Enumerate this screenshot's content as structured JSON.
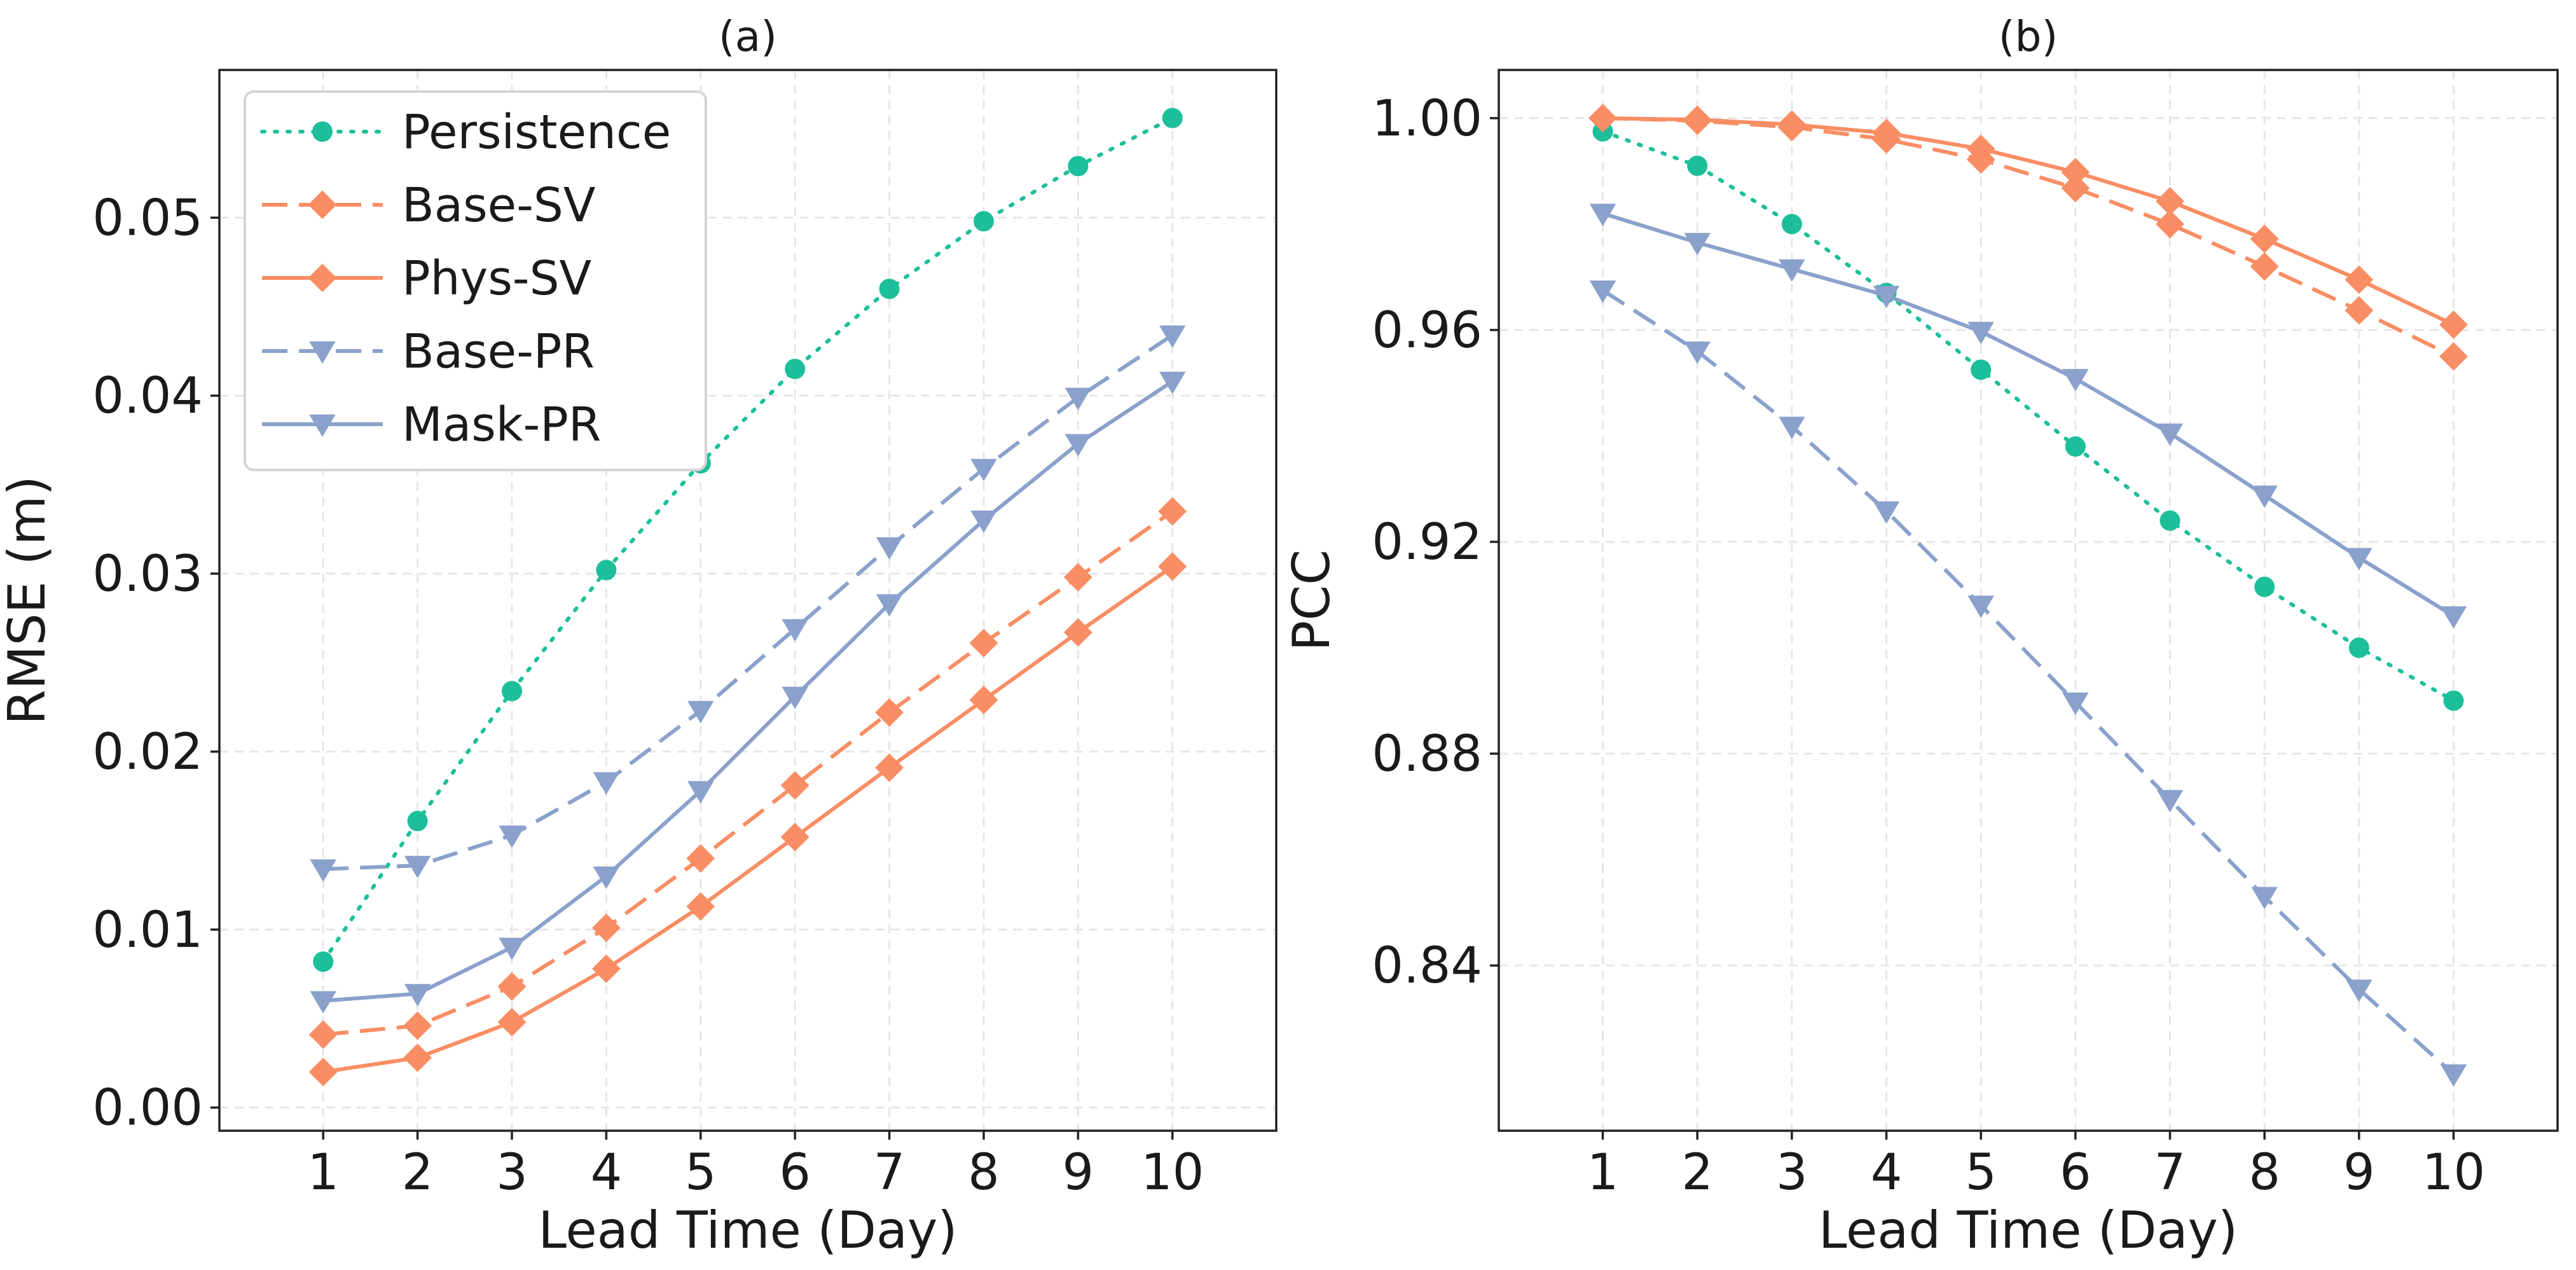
{
  "chart_data": [
    {
      "type": "line",
      "title": "(a)",
      "xlabel": "Lead Time (Day)",
      "ylabel": "RMSE (m)",
      "x": [
        1,
        2,
        3,
        4,
        5,
        6,
        7,
        8,
        9,
        10
      ],
      "xlim": [
        -0.1,
        11.1
      ],
      "ylim": [
        -0.0013,
        0.0583
      ],
      "xticks": [
        1,
        2,
        3,
        4,
        5,
        6,
        7,
        8,
        9,
        10
      ],
      "yticks": [
        0,
        0.01,
        0.02,
        0.03,
        0.04,
        0.05
      ],
      "ytick_labels": [
        "0.00",
        "0.01",
        "0.02",
        "0.03",
        "0.04",
        "0.05"
      ],
      "grid": true,
      "legend_position": "upper-left",
      "series": [
        {
          "name": "Persistence",
          "color": "#1dbf9a",
          "linestyle": "dotted",
          "marker": "circle",
          "values": [
            0.0082,
            0.0161,
            0.0234,
            0.0302,
            0.0362,
            0.0415,
            0.046,
            0.0498,
            0.0529,
            0.0556
          ]
        },
        {
          "name": "Base-SV",
          "color": "#f98d63",
          "linestyle": "dashed",
          "marker": "diamond",
          "values": [
            0.0041,
            0.0046,
            0.0068,
            0.0101,
            0.014,
            0.0181,
            0.0222,
            0.0261,
            0.0298,
            0.0335
          ]
        },
        {
          "name": "Phys-SV",
          "color": "#f98d63",
          "linestyle": "solid",
          "marker": "diamond",
          "values": [
            0.002,
            0.0028,
            0.0048,
            0.0078,
            0.0113,
            0.0152,
            0.0191,
            0.0229,
            0.0267,
            0.0304
          ]
        },
        {
          "name": "Base-PR",
          "color": "#8aa1cc",
          "linestyle": "dashed",
          "marker": "triangle-down",
          "values": [
            0.0134,
            0.0136,
            0.0153,
            0.0183,
            0.0223,
            0.0269,
            0.0315,
            0.0359,
            0.0399,
            0.0434
          ]
        },
        {
          "name": "Mask-PR",
          "color": "#8aa1cc",
          "linestyle": "solid",
          "marker": "triangle-down",
          "values": [
            0.006,
            0.0064,
            0.009,
            0.013,
            0.0178,
            0.0231,
            0.0283,
            0.033,
            0.0373,
            0.0408
          ]
        }
      ]
    },
    {
      "type": "line",
      "title": "(b)",
      "xlabel": "Lead Time (Day)",
      "ylabel": "PCC",
      "x": [
        1,
        2,
        3,
        4,
        5,
        6,
        7,
        8,
        9,
        10
      ],
      "xlim": [
        -0.1,
        11.1
      ],
      "ylim": [
        0.8088,
        1.0091
      ],
      "xticks": [
        1,
        2,
        3,
        4,
        5,
        6,
        7,
        8,
        9,
        10
      ],
      "yticks": [
        0.84,
        0.88,
        0.92,
        0.96,
        1.0
      ],
      "ytick_labels": [
        "0.84",
        "0.88",
        "0.92",
        "0.96",
        "1.00"
      ],
      "grid": true,
      "series": [
        {
          "name": "Persistence",
          "color": "#1dbf9a",
          "linestyle": "dotted",
          "marker": "circle",
          "values": [
            0.9975,
            0.991,
            0.98,
            0.967,
            0.9525,
            0.938,
            0.924,
            0.9115,
            0.9,
            0.89
          ]
        },
        {
          "name": "Base-SV",
          "color": "#f98d63",
          "linestyle": "dashed",
          "marker": "diamond",
          "values": [
            1.0,
            0.9995,
            0.9983,
            0.996,
            0.9922,
            0.9868,
            0.98,
            0.972,
            0.9637,
            0.955
          ]
        },
        {
          "name": "Phys-SV",
          "color": "#f98d63",
          "linestyle": "solid",
          "marker": "diamond",
          "values": [
            1.0,
            0.9997,
            0.9988,
            0.9972,
            0.9942,
            0.9898,
            0.9843,
            0.9772,
            0.9695,
            0.961
          ]
        },
        {
          "name": "Base-PR",
          "color": "#8aa1cc",
          "linestyle": "dashed",
          "marker": "triangle-down",
          "values": [
            0.9675,
            0.956,
            0.9418,
            0.9258,
            0.908,
            0.8897,
            0.8713,
            0.853,
            0.8355,
            0.8195
          ]
        },
        {
          "name": "Mask-PR",
          "color": "#8aa1cc",
          "linestyle": "solid",
          "marker": "triangle-down",
          "values": [
            0.982,
            0.9765,
            0.9715,
            0.9665,
            0.9597,
            0.9508,
            0.9405,
            0.9288,
            0.917,
            0.906
          ]
        }
      ]
    }
  ]
}
